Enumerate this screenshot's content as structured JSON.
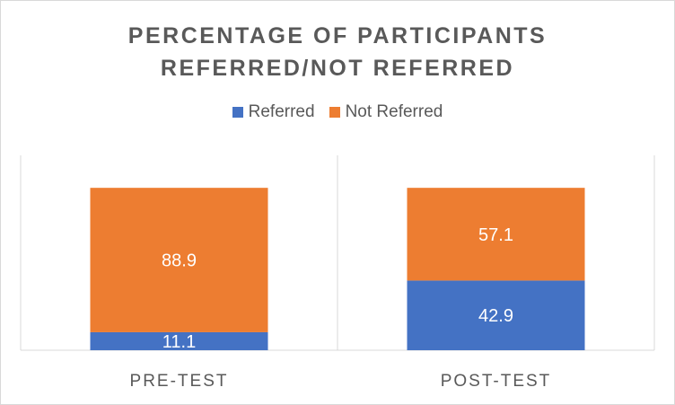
{
  "chart_data": {
    "type": "bar",
    "stacked": true,
    "title_lines": [
      "PERCENTAGE OF PARTICIPANTS",
      "REFERRED/NOT REFERRED"
    ],
    "categories": [
      "PRE-TEST",
      "POST-TEST"
    ],
    "series": [
      {
        "name": "Referred",
        "color": "#4472c4",
        "values": [
          11.1,
          42.9
        ]
      },
      {
        "name": "Not Referred",
        "color": "#ed7d31",
        "values": [
          88.9,
          57.1
        ]
      }
    ],
    "ylim": [
      0,
      120
    ],
    "legend_position": "top",
    "grid": false,
    "data_labels": true,
    "category_separators": true
  }
}
